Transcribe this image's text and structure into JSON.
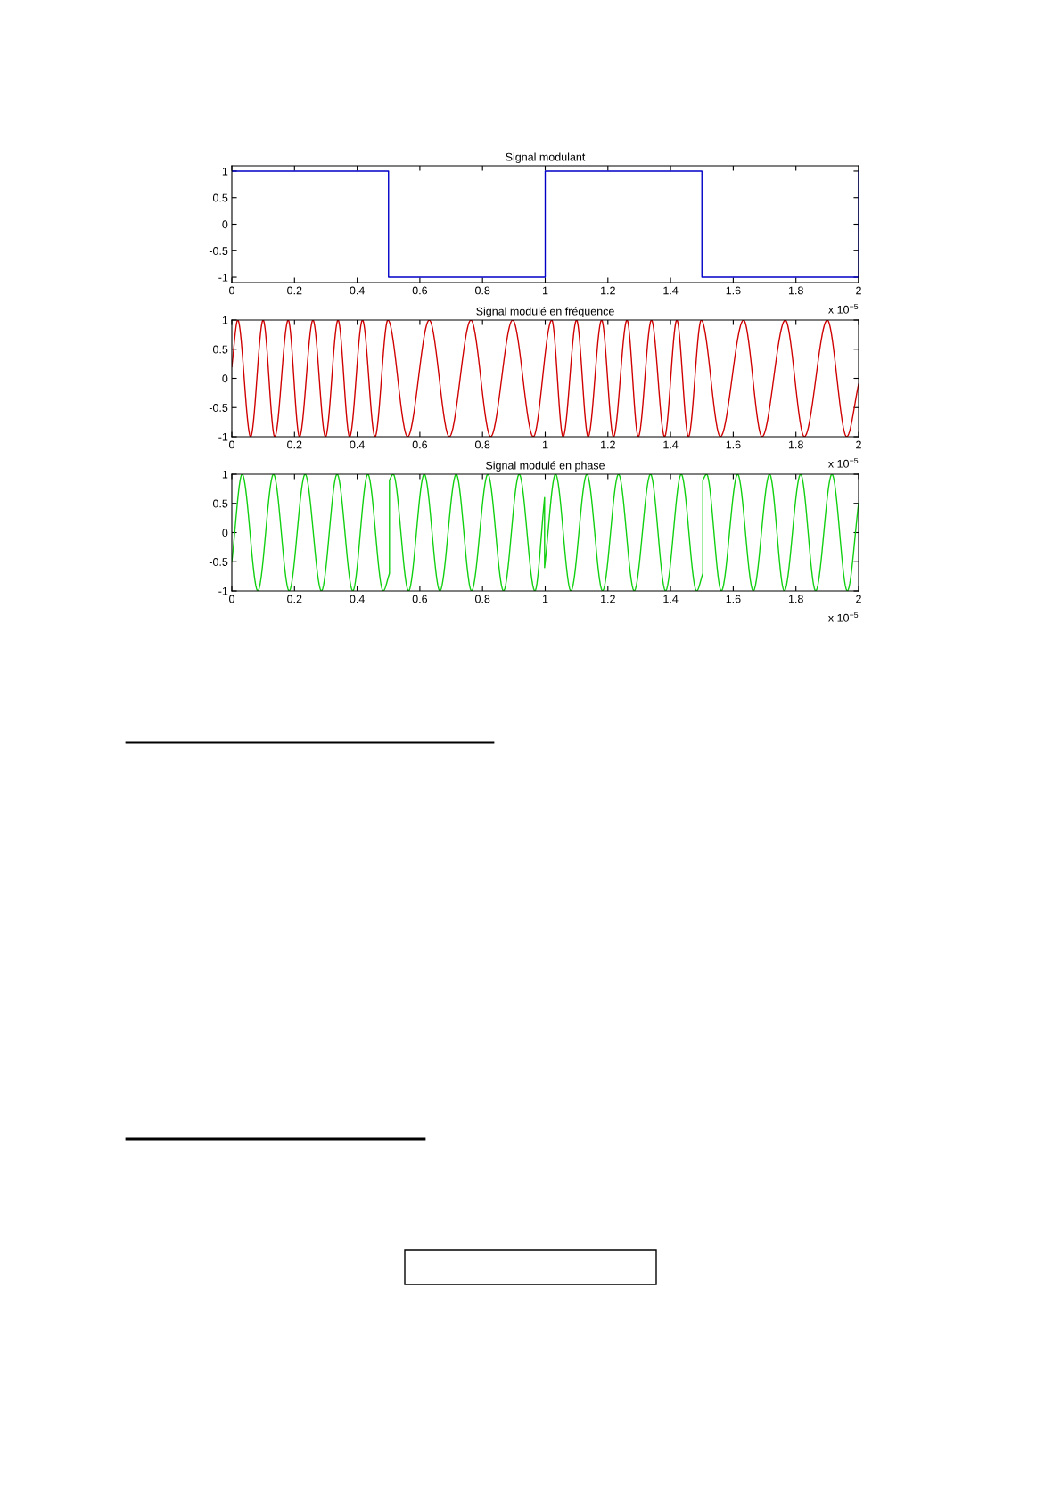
{
  "chart_data": [
    {
      "type": "step",
      "title": "Signal modulant",
      "x": [
        0,
        0.5,
        1,
        1.5,
        2
      ],
      "series": [
        {
          "color": "#0000c8",
          "values": [
            1,
            -1,
            1,
            -1,
            1
          ]
        }
      ],
      "xlim": [
        0,
        2
      ],
      "xticks": [
        0,
        0.2,
        0.4,
        0.6,
        0.8,
        1,
        1.2,
        1.4,
        1.6,
        1.8,
        2
      ],
      "ylim": [
        -1.1,
        1.1
      ],
      "yticks": [
        -1,
        -0.5,
        0,
        0.5,
        1
      ],
      "annotations": [
        "x 10$^{−5}$"
      ]
    },
    {
      "type": "line",
      "title": "Signal modulé en fréquence",
      "x": [
        0,
        0.019,
        0.06,
        0.1,
        0.137,
        0.18,
        0.216,
        0.259,
        0.299,
        0.339,
        0.376,
        0.417,
        0.457,
        0.498,
        0.561,
        0.63,
        0.694,
        0.763,
        0.826,
        0.896,
        0.962,
        1.021,
        1.057,
        1.1,
        1.137,
        1.18,
        1.218,
        1.261,
        1.297,
        1.339,
        1.381,
        1.42,
        1.457,
        1.498,
        1.559,
        1.633,
        1.692,
        1.766,
        1.827,
        1.9,
        1.962,
        2
      ],
      "series": [
        {
          "color": "#d00000",
          "values": [
            0.2,
            1,
            -1,
            1,
            -1,
            1,
            -1,
            1,
            -1,
            1,
            -1,
            1,
            -1,
            1,
            -1,
            1,
            -1,
            1,
            -1,
            1,
            -1,
            1,
            -1,
            1,
            -1,
            1,
            -1,
            1,
            -1,
            1,
            -1,
            1,
            -1,
            1,
            -1,
            1,
            -1,
            1,
            -1,
            1,
            -1,
            -0.1
          ]
        }
      ],
      "xlim": [
        0,
        2
      ],
      "xticks": [
        0,
        0.2,
        0.4,
        0.6,
        0.8,
        1,
        1.2,
        1.4,
        1.6,
        1.8,
        2
      ],
      "ylim": [
        -1,
        1
      ],
      "yticks": [
        -1,
        -0.5,
        0,
        0.5,
        1
      ],
      "annotations": [
        "x 10$^{−5}$"
      ]
    },
    {
      "type": "line",
      "title": "Signal modulé en phase",
      "x": [
        0,
        0.033,
        0.083,
        0.133,
        0.183,
        0.234,
        0.286,
        0.336,
        0.386,
        0.434,
        0.483,
        0.503,
        0.503,
        0.515,
        0.564,
        0.614,
        0.664,
        0.716,
        0.765,
        0.817,
        0.867,
        0.917,
        0.967,
        0.998,
        0.998,
        1.033,
        1.082,
        1.133,
        1.183,
        1.234,
        1.284,
        1.336,
        1.384,
        1.434,
        1.483,
        1.503,
        1.503,
        1.515,
        1.562,
        1.614,
        1.664,
        1.716,
        1.763,
        1.815,
        1.863,
        1.915,
        1.964,
        2
      ],
      "series": [
        {
          "color": "#10d010",
          "values": [
            -0.5,
            1,
            -1,
            1,
            -1,
            1,
            -1,
            1,
            -1,
            1,
            -1,
            -0.7,
            0.9,
            1,
            -1,
            1,
            -1,
            1,
            -1,
            1,
            -1,
            1,
            -1,
            0.6,
            -0.6,
            1,
            -1,
            1,
            -1,
            1,
            -1,
            1,
            -1,
            1,
            -1,
            -0.7,
            0.9,
            1,
            -1,
            1,
            -1,
            1,
            -1,
            1,
            -1,
            1,
            -1,
            0.5
          ]
        }
      ],
      "xlim": [
        0,
        2
      ],
      "xticks": [
        0,
        0.2,
        0.4,
        0.6,
        0.8,
        1,
        1.2,
        1.4,
        1.6,
        1.8,
        2
      ],
      "ylim": [
        -1,
        1
      ],
      "yticks": [
        -1,
        -0.5,
        0,
        0.5,
        1
      ],
      "annotations": [
        "x 10$^{−5}$"
      ]
    }
  ]
}
